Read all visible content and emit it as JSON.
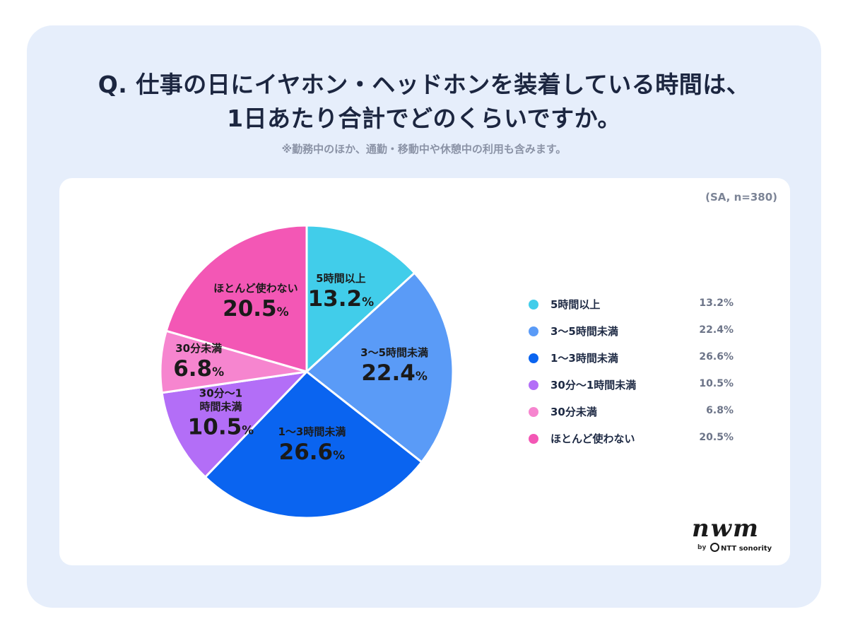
{
  "title_lines": [
    "Q. 仕事の日にイヤホン・ヘッドホンを装着している時間は、",
    "1日あたり合計でどのくらいですか。"
  ],
  "note": "※勤務中のほか、通勤・移動中や休憩中の利用も含みます。",
  "sample": "(SA, n=380)",
  "logo": {
    "brand": "nwm",
    "by": "by",
    "company": "NTT sonority"
  },
  "chart_data": {
    "type": "pie",
    "unit": "%",
    "categories": [
      "5時間以上",
      "3〜5時間未満",
      "1〜3時間未満",
      "30分〜1時間未満",
      "30分未満",
      "ほとんど使わない"
    ],
    "values": [
      13.2,
      22.4,
      26.6,
      10.5,
      6.8,
      20.5
    ],
    "slice_labels": [
      {
        "cat": "5時間以上",
        "val": "13.2"
      },
      {
        "cat": "3〜5時間未満",
        "val": "22.4"
      },
      {
        "cat": "1〜3時間未満",
        "val": "26.6"
      },
      {
        "cat": "30分〜1\n時間未満",
        "val": "10.5"
      },
      {
        "cat": "30分未満",
        "val": "6.8"
      },
      {
        "cat": "ほとんど使わない",
        "val": "20.5"
      }
    ],
    "legend": [
      {
        "label": "5時間以上",
        "value": "13.2%"
      },
      {
        "label": "3〜5時間未満",
        "value": "22.4%"
      },
      {
        "label": "1〜3時間未満",
        "value": "26.6%"
      },
      {
        "label": "30分〜1時間未満",
        "value": "10.5%"
      },
      {
        "label": "30分未満",
        "value": "6.8%"
      },
      {
        "label": "ほとんど使わない",
        "value": "20.5%"
      }
    ],
    "colors": [
      "#41cdea",
      "#5a9bf7",
      "#0a64f0",
      "#b36ef7",
      "#f685cf",
      "#f357b5"
    ],
    "legend_placement": "right"
  }
}
